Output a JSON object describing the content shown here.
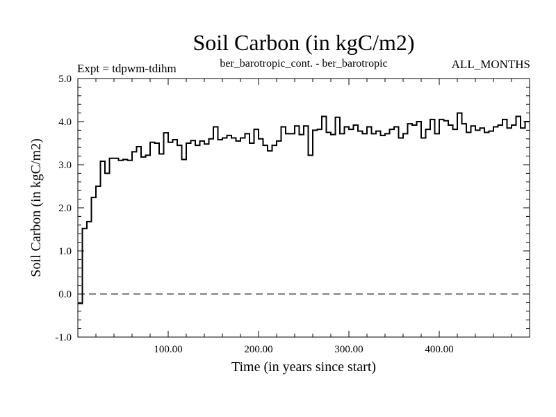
{
  "chart_data": {
    "type": "line",
    "title": "Soil Carbon (in kgC/m2)",
    "subtitle": "ber_barotropic_cont. - ber_barotropic",
    "left_annotation": "Expt = tdpwm-tdihm",
    "right_annotation": "ALL_MONTHS",
    "xlabel": "Time (in years since start)",
    "ylabel": "Soil Carbon (in kgC/m2)",
    "xlim": [
      0,
      500
    ],
    "ylim": [
      -1.0,
      5.0
    ],
    "x_ticks": [
      100,
      200,
      300,
      400
    ],
    "x_tick_labels": [
      "100.00",
      "200.00",
      "300.00",
      "400.00"
    ],
    "y_ticks": [
      -1.0,
      0.0,
      1.0,
      2.0,
      3.0,
      4.0,
      5.0
    ],
    "y_tick_labels": [
      "-1.0",
      "0.0",
      "1.0",
      "2.0",
      "3.0",
      "4.0",
      "5.0"
    ],
    "reference_line": {
      "y": 0.0,
      "style": "dashed"
    },
    "step_width": 5,
    "series": [
      {
        "name": "Soil Carbon",
        "x": [
          0,
          5,
          10,
          15,
          20,
          25,
          30,
          35,
          40,
          45,
          50,
          55,
          60,
          65,
          70,
          75,
          80,
          85,
          90,
          95,
          100,
          105,
          110,
          115,
          120,
          125,
          130,
          135,
          140,
          145,
          150,
          155,
          160,
          165,
          170,
          175,
          180,
          185,
          190,
          195,
          200,
          205,
          210,
          215,
          220,
          225,
          230,
          235,
          240,
          245,
          250,
          255,
          260,
          265,
          270,
          275,
          280,
          285,
          290,
          295,
          300,
          305,
          310,
          315,
          320,
          325,
          330,
          335,
          340,
          345,
          350,
          355,
          360,
          365,
          370,
          375,
          380,
          385,
          390,
          395,
          400,
          405,
          410,
          415,
          420,
          425,
          430,
          435,
          440,
          445,
          450,
          455,
          460,
          465,
          470,
          475,
          480,
          485,
          490,
          495
        ],
        "values": [
          -0.22,
          1.52,
          1.68,
          2.24,
          2.5,
          3.08,
          2.8,
          3.15,
          3.15,
          3.1,
          3.12,
          3.1,
          3.3,
          3.42,
          3.18,
          3.22,
          3.52,
          3.5,
          3.25,
          3.74,
          3.52,
          3.58,
          3.45,
          3.12,
          3.5,
          3.56,
          3.45,
          3.55,
          3.48,
          3.6,
          3.88,
          3.58,
          3.62,
          3.68,
          3.62,
          3.55,
          3.62,
          3.72,
          3.5,
          3.82,
          3.6,
          3.45,
          3.32,
          3.45,
          3.55,
          3.88,
          3.72,
          3.72,
          3.9,
          3.7,
          3.9,
          3.22,
          3.8,
          3.82,
          4.12,
          3.75,
          3.7,
          4.1,
          3.72,
          3.88,
          3.82,
          3.92,
          3.78,
          3.72,
          3.88,
          3.72,
          3.78,
          3.68,
          3.72,
          3.82,
          3.88,
          3.62,
          3.72,
          3.95,
          3.92,
          4.0,
          3.62,
          3.82,
          4.05,
          3.72,
          4.05,
          4.02,
          3.92,
          3.82,
          4.2,
          3.95,
          3.75,
          3.9,
          3.8,
          3.85,
          3.75,
          3.78,
          3.88,
          3.92,
          4.05,
          3.85,
          3.92,
          4.12,
          3.85,
          4.0
        ]
      }
    ]
  }
}
